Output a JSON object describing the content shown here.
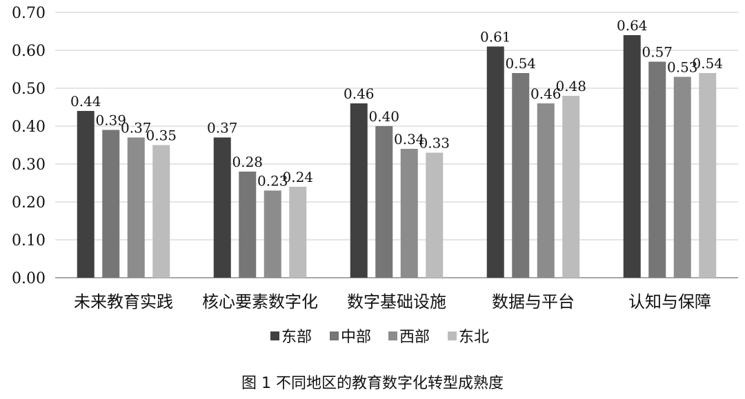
{
  "chart_data": {
    "type": "bar",
    "categories": [
      "未来教育实践",
      "核心要素数字化",
      "数字基础设施",
      "数据与平台",
      "认知与保障"
    ],
    "series": [
      {
        "name": "东部",
        "values": [
          0.44,
          0.37,
          0.46,
          0.61,
          0.64
        ],
        "color": "#404040"
      },
      {
        "name": "中部",
        "values": [
          0.39,
          0.28,
          0.4,
          0.54,
          0.57
        ],
        "color": "#767676"
      },
      {
        "name": "西部",
        "values": [
          0.37,
          0.23,
          0.34,
          0.46,
          0.53
        ],
        "color": "#8c8c8c"
      },
      {
        "name": "东北",
        "values": [
          0.35,
          0.24,
          0.33,
          0.48,
          0.54
        ],
        "color": "#bcbcbc"
      }
    ],
    "y_ticks": [
      "0.00",
      "0.10",
      "0.20",
      "0.30",
      "0.40",
      "0.50",
      "0.60",
      "0.70"
    ],
    "ylim": [
      0,
      0.7
    ],
    "grid": true,
    "legend_position": "bottom",
    "caption": "图 1 不同地区的教育数字化转型成熟度"
  }
}
